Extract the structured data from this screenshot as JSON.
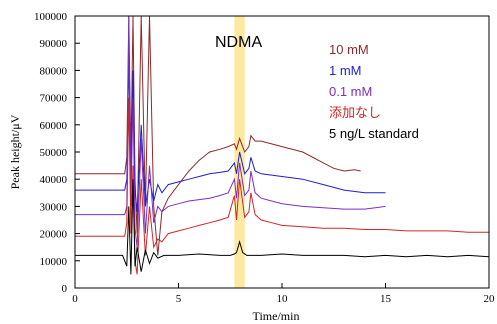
{
  "chart_data": {
    "type": "line",
    "xlabel": "Time/min",
    "ylabel": "Peak height/μV",
    "xlim": [
      0,
      20
    ],
    "ylim": [
      0,
      100000
    ],
    "x_ticks": [
      "0",
      "5",
      "10",
      "15",
      "20"
    ],
    "y_ticks": [
      "0",
      "10000",
      "20000",
      "30000",
      "40000",
      "50000",
      "60000",
      "70000",
      "80000",
      "90000",
      "100000"
    ],
    "grid": false,
    "annotation": {
      "text": "NDMA",
      "band_x": [
        7.7,
        8.2
      ],
      "band_color": "#FFE9A0"
    },
    "legend_position": "top-right",
    "series": [
      {
        "name": "10 mM",
        "color": "#8B2A2A",
        "x": [
          0,
          2.4,
          2.5,
          2.6,
          2.7,
          2.8,
          2.9,
          3.0,
          3.2,
          3.4,
          3.6,
          3.8,
          4.0,
          4.2,
          4.5,
          5.0,
          5.5,
          6.0,
          6.5,
          7.0,
          7.4,
          7.7,
          7.8,
          7.95,
          8.2,
          8.4,
          8.5,
          8.7,
          9.0,
          10.0,
          11.0,
          12.0,
          12.5,
          13.0,
          13.5,
          13.8
        ],
        "y": [
          42000,
          42000,
          48000,
          100000,
          48000,
          100000,
          40000,
          20000,
          100000,
          30000,
          100000,
          30000,
          12000,
          28000,
          33000,
          38000,
          43000,
          47000,
          50000,
          51000,
          52000,
          53000,
          51000,
          55000,
          50000,
          52000,
          56000,
          54000,
          54000,
          52000,
          50000,
          46000,
          44000,
          43000,
          43500,
          43000
        ]
      },
      {
        "name": "1 mM",
        "color": "#1F1FCC",
        "x": [
          0,
          2.4,
          2.5,
          2.6,
          2.7,
          2.8,
          2.9,
          3.0,
          3.2,
          3.4,
          3.6,
          3.8,
          4.0,
          4.2,
          4.5,
          5.0,
          5.5,
          6.0,
          6.5,
          7.0,
          7.4,
          7.7,
          7.8,
          7.95,
          8.2,
          8.4,
          8.5,
          8.7,
          9.0,
          10.0,
          11.0,
          12.0,
          13.0,
          14.0,
          15.0
        ],
        "y": [
          36000,
          36000,
          40000,
          85000,
          40000,
          80000,
          36000,
          28000,
          60000,
          30000,
          40000,
          32000,
          38000,
          35000,
          38000,
          39000,
          40000,
          41000,
          42000,
          42500,
          43000,
          46000,
          42000,
          50000,
          42000,
          44000,
          48000,
          43000,
          42000,
          41000,
          40000,
          38000,
          36000,
          35000,
          35000
        ]
      },
      {
        "name": "0.1 mM",
        "color": "#7A2FC2",
        "x": [
          0,
          2.4,
          2.5,
          2.6,
          2.7,
          2.8,
          2.9,
          3.0,
          3.2,
          3.4,
          3.6,
          3.8,
          4.0,
          4.2,
          4.5,
          5.0,
          5.5,
          6.0,
          6.5,
          7.0,
          7.4,
          7.7,
          7.8,
          7.95,
          8.2,
          8.4,
          8.5,
          8.7,
          9.0,
          9.5,
          10.0,
          11.0,
          12.0,
          13.0,
          14.0,
          15.0
        ],
        "y": [
          27000,
          27000,
          30000,
          100000,
          30000,
          70000,
          22000,
          15000,
          55000,
          20000,
          45000,
          24000,
          30000,
          28000,
          30000,
          31000,
          32000,
          32500,
          33000,
          34000,
          35000,
          40000,
          33000,
          46000,
          34000,
          36000,
          43000,
          35000,
          33000,
          32000,
          31000,
          30000,
          29500,
          29000,
          29000,
          30000
        ]
      },
      {
        "name": "添加なし",
        "color": "#CC2828",
        "x": [
          0,
          2.4,
          2.5,
          2.6,
          2.7,
          2.8,
          2.9,
          3.0,
          3.2,
          3.4,
          3.6,
          3.8,
          4.0,
          4.2,
          4.5,
          5.0,
          5.5,
          6.0,
          6.5,
          7.0,
          7.4,
          7.7,
          7.8,
          7.95,
          8.2,
          8.4,
          8.5,
          8.7,
          9.0,
          9.5,
          10.0,
          11.0,
          12.0,
          13.0,
          14.0,
          15.0,
          16.0,
          17.0,
          18.0,
          19.0,
          20.0
        ],
        "y": [
          19000,
          19000,
          24000,
          70000,
          20000,
          45000,
          10000,
          5000,
          40000,
          12000,
          30000,
          15000,
          18000,
          17000,
          20000,
          21000,
          22000,
          23000,
          24000,
          25000,
          26000,
          34000,
          25000,
          40000,
          26000,
          28000,
          35000,
          27000,
          25000,
          24000,
          23000,
          22500,
          22000,
          22000,
          21500,
          21500,
          21000,
          21000,
          21000,
          20500,
          20500
        ]
      },
      {
        "name": "5 ng/L standard",
        "color": "#000000",
        "x": [
          0,
          2.3,
          2.5,
          2.6,
          2.7,
          2.8,
          2.9,
          3.0,
          3.2,
          3.4,
          3.6,
          3.8,
          4.0,
          4.3,
          5.0,
          6.0,
          7.0,
          7.5,
          7.7,
          7.8,
          7.95,
          8.1,
          8.3,
          9.0,
          10.0,
          11.0,
          12.0,
          13.0,
          14.0,
          15.0,
          16.0,
          17.0,
          18.0,
          19.0,
          20.0
        ],
        "y": [
          12000,
          12000,
          8000,
          30000,
          5000,
          40000,
          8000,
          15000,
          6000,
          14000,
          9000,
          13000,
          11000,
          12000,
          12000,
          12500,
          12000,
          12000,
          12500,
          13000,
          17000,
          13000,
          12000,
          12000,
          12500,
          12000,
          12000,
          12000,
          11500,
          12000,
          11500,
          12000,
          11500,
          12000,
          11500
        ]
      }
    ]
  }
}
